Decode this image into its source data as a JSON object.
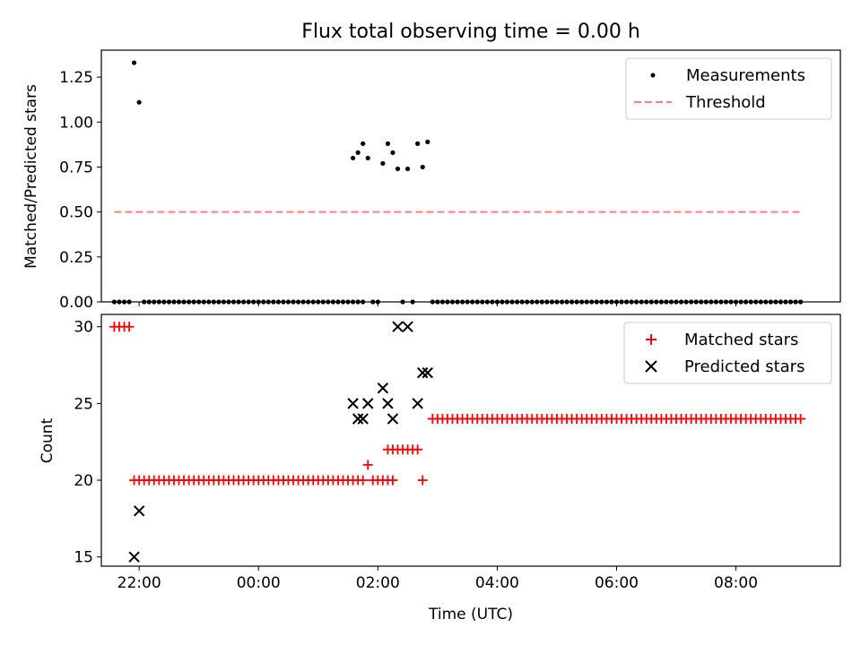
{
  "figure": {
    "title": "Flux total observing time = 0.00 h",
    "xlabel": "Time (UTC)"
  },
  "chart_data": [
    {
      "type": "scatter",
      "ylabel": "Matched/Predicted stars",
      "xlim": [
        "21:22",
        "09:45"
      ],
      "ylim": [
        0,
        1.4
      ],
      "yticks": [
        "0.00",
        "0.25",
        "0.50",
        "0.75",
        "1.00",
        "1.25"
      ],
      "ytick_values": [
        0,
        0.25,
        0.5,
        0.75,
        1.0,
        1.25
      ],
      "xticks": [
        "22:00",
        "00:00",
        "02:00",
        "04:00",
        "06:00",
        "08:00"
      ],
      "x_tick_labels_shown": false,
      "grid": false,
      "legend": "top-right",
      "series": [
        {
          "name": "Measurements",
          "marker": "dot",
          "color": "#000000",
          "points": [
            {
              "x": "21:55",
              "y": 1.33
            },
            {
              "x": "22:00",
              "y": 1.11
            },
            {
              "x": "01:35",
              "y": 0.8
            },
            {
              "x": "01:40",
              "y": 0.83
            },
            {
              "x": "01:45",
              "y": 0.88
            },
            {
              "x": "01:50",
              "y": 0.8
            },
            {
              "x": "02:05",
              "y": 0.77
            },
            {
              "x": "02:10",
              "y": 0.88
            },
            {
              "x": "02:15",
              "y": 0.83
            },
            {
              "x": "02:20",
              "y": 0.74
            },
            {
              "x": "02:30",
              "y": 0.74
            },
            {
              "x": "02:40",
              "y": 0.88
            },
            {
              "x": "02:45",
              "y": 0.75
            },
            {
              "x": "02:50",
              "y": 0.89
            }
          ],
          "zero_ranges": [
            {
              "from": "21:35",
              "to": "21:50",
              "y": 0
            },
            {
              "from": "22:05",
              "to": "01:45",
              "y": 0
            },
            {
              "from": "01:55",
              "to": "02:00",
              "y": 0
            },
            {
              "from": "02:25",
              "to": "02:25",
              "y": 0
            },
            {
              "from": "02:35",
              "to": "02:35",
              "y": 0
            },
            {
              "from": "02:55",
              "to": "09:05",
              "y": 0
            }
          ]
        },
        {
          "name": "Threshold",
          "line_style": "dashed",
          "color": "#ff7f7f",
          "points": [
            {
              "x": "21:35",
              "y": 0.5
            },
            {
              "x": "09:05",
              "y": 0.5
            }
          ]
        }
      ]
    },
    {
      "type": "scatter",
      "ylabel": "Count",
      "xlim": [
        "21:22",
        "09:45"
      ],
      "ylim": [
        14.4,
        30.8
      ],
      "yticks": [
        "15",
        "20",
        "25",
        "30"
      ],
      "ytick_values": [
        15,
        20,
        25,
        30
      ],
      "xticks": [
        "22:00",
        "00:00",
        "02:00",
        "04:00",
        "06:00",
        "08:00"
      ],
      "grid": false,
      "legend": "top-right",
      "series": [
        {
          "name": "Matched stars",
          "marker": "plus",
          "color": "#ff0000",
          "ranges": [
            {
              "from": "21:35",
              "to": "21:50",
              "y": 30
            },
            {
              "from": "21:55",
              "to": "01:45",
              "y": 20
            },
            {
              "from": "01:55",
              "to": "02:15",
              "y": 20
            },
            {
              "from": "02:10",
              "to": "02:40",
              "y": 22
            },
            {
              "from": "02:55",
              "to": "09:05",
              "y": 24
            }
          ],
          "points": [
            {
              "x": "01:50",
              "y": 21
            },
            {
              "x": "02:45",
              "y": 20
            }
          ]
        },
        {
          "name": "Predicted stars",
          "marker": "x",
          "color": "#000000",
          "points": [
            {
              "x": "21:55",
              "y": 15
            },
            {
              "x": "22:00",
              "y": 18
            },
            {
              "x": "01:35",
              "y": 25
            },
            {
              "x": "01:40",
              "y": 24
            },
            {
              "x": "01:45",
              "y": 24
            },
            {
              "x": "01:50",
              "y": 25
            },
            {
              "x": "02:05",
              "y": 26
            },
            {
              "x": "02:10",
              "y": 25
            },
            {
              "x": "02:15",
              "y": 24
            },
            {
              "x": "02:20",
              "y": 30
            },
            {
              "x": "02:30",
              "y": 30
            },
            {
              "x": "02:40",
              "y": 25
            },
            {
              "x": "02:45",
              "y": 27
            },
            {
              "x": "02:50",
              "y": 27
            }
          ]
        }
      ]
    }
  ]
}
